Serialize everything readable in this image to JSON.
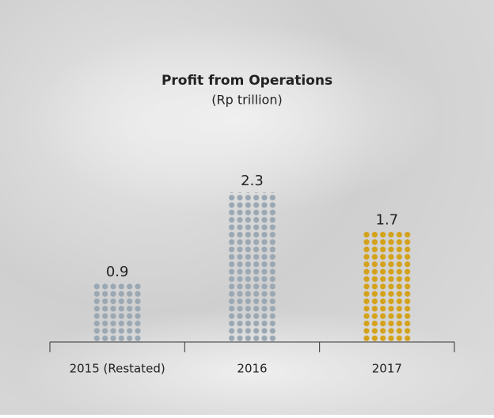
{
  "chart_data": {
    "type": "bar",
    "title": "Profit from Operations",
    "subtitle": "(Rp trillion)",
    "categories": [
      "2015 (Restated)",
      "2016",
      "2017"
    ],
    "values": [
      0.9,
      2.3,
      1.7
    ],
    "colors": [
      "#9aa8b4",
      "#9aa8b4",
      "#d4a21a"
    ]
  }
}
